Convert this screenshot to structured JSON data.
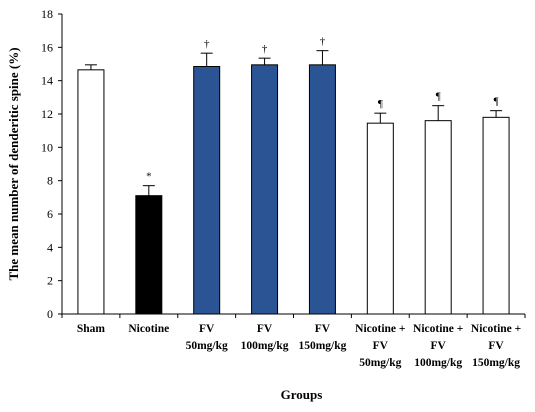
{
  "chart_data": {
    "type": "bar",
    "xlabel": "Groups",
    "ylabel": "The mean number of denderitic spine (%)",
    "ylim": [
      0,
      18
    ],
    "yticks": [
      0,
      2,
      4,
      6,
      8,
      10,
      12,
      14,
      16,
      18
    ],
    "grid": false,
    "legend": "none",
    "categories": [
      [
        "Sham"
      ],
      [
        "Nicotine"
      ],
      [
        "FV",
        "50mg/kg"
      ],
      [
        "FV",
        "100mg/kg"
      ],
      [
        "FV",
        "150mg/kg"
      ],
      [
        "Nicotine +",
        "FV",
        "50mg/kg"
      ],
      [
        "Nicotine +",
        "FV",
        "100mg/kg"
      ],
      [
        "Nicotine +",
        "FV",
        "150mg/kg"
      ]
    ],
    "values": [
      14.65,
      7.1,
      14.85,
      14.95,
      14.95,
      11.45,
      11.6,
      11.8
    ],
    "errors": [
      0.3,
      0.6,
      0.8,
      0.4,
      0.85,
      0.6,
      0.9,
      0.4
    ],
    "markers": [
      "",
      "*",
      "†",
      "†",
      "†",
      "¶",
      "¶",
      "¶"
    ],
    "colors": {
      "Sham": "#ffffff",
      "Nicotine": "#000000",
      "FV": "#2b5494",
      "Nicotine + FV": "#ffffff"
    },
    "bar_fill": [
      "#ffffff",
      "#000000",
      "#2b5494",
      "#2b5494",
      "#2b5494",
      "#ffffff",
      "#ffffff",
      "#ffffff"
    ]
  }
}
